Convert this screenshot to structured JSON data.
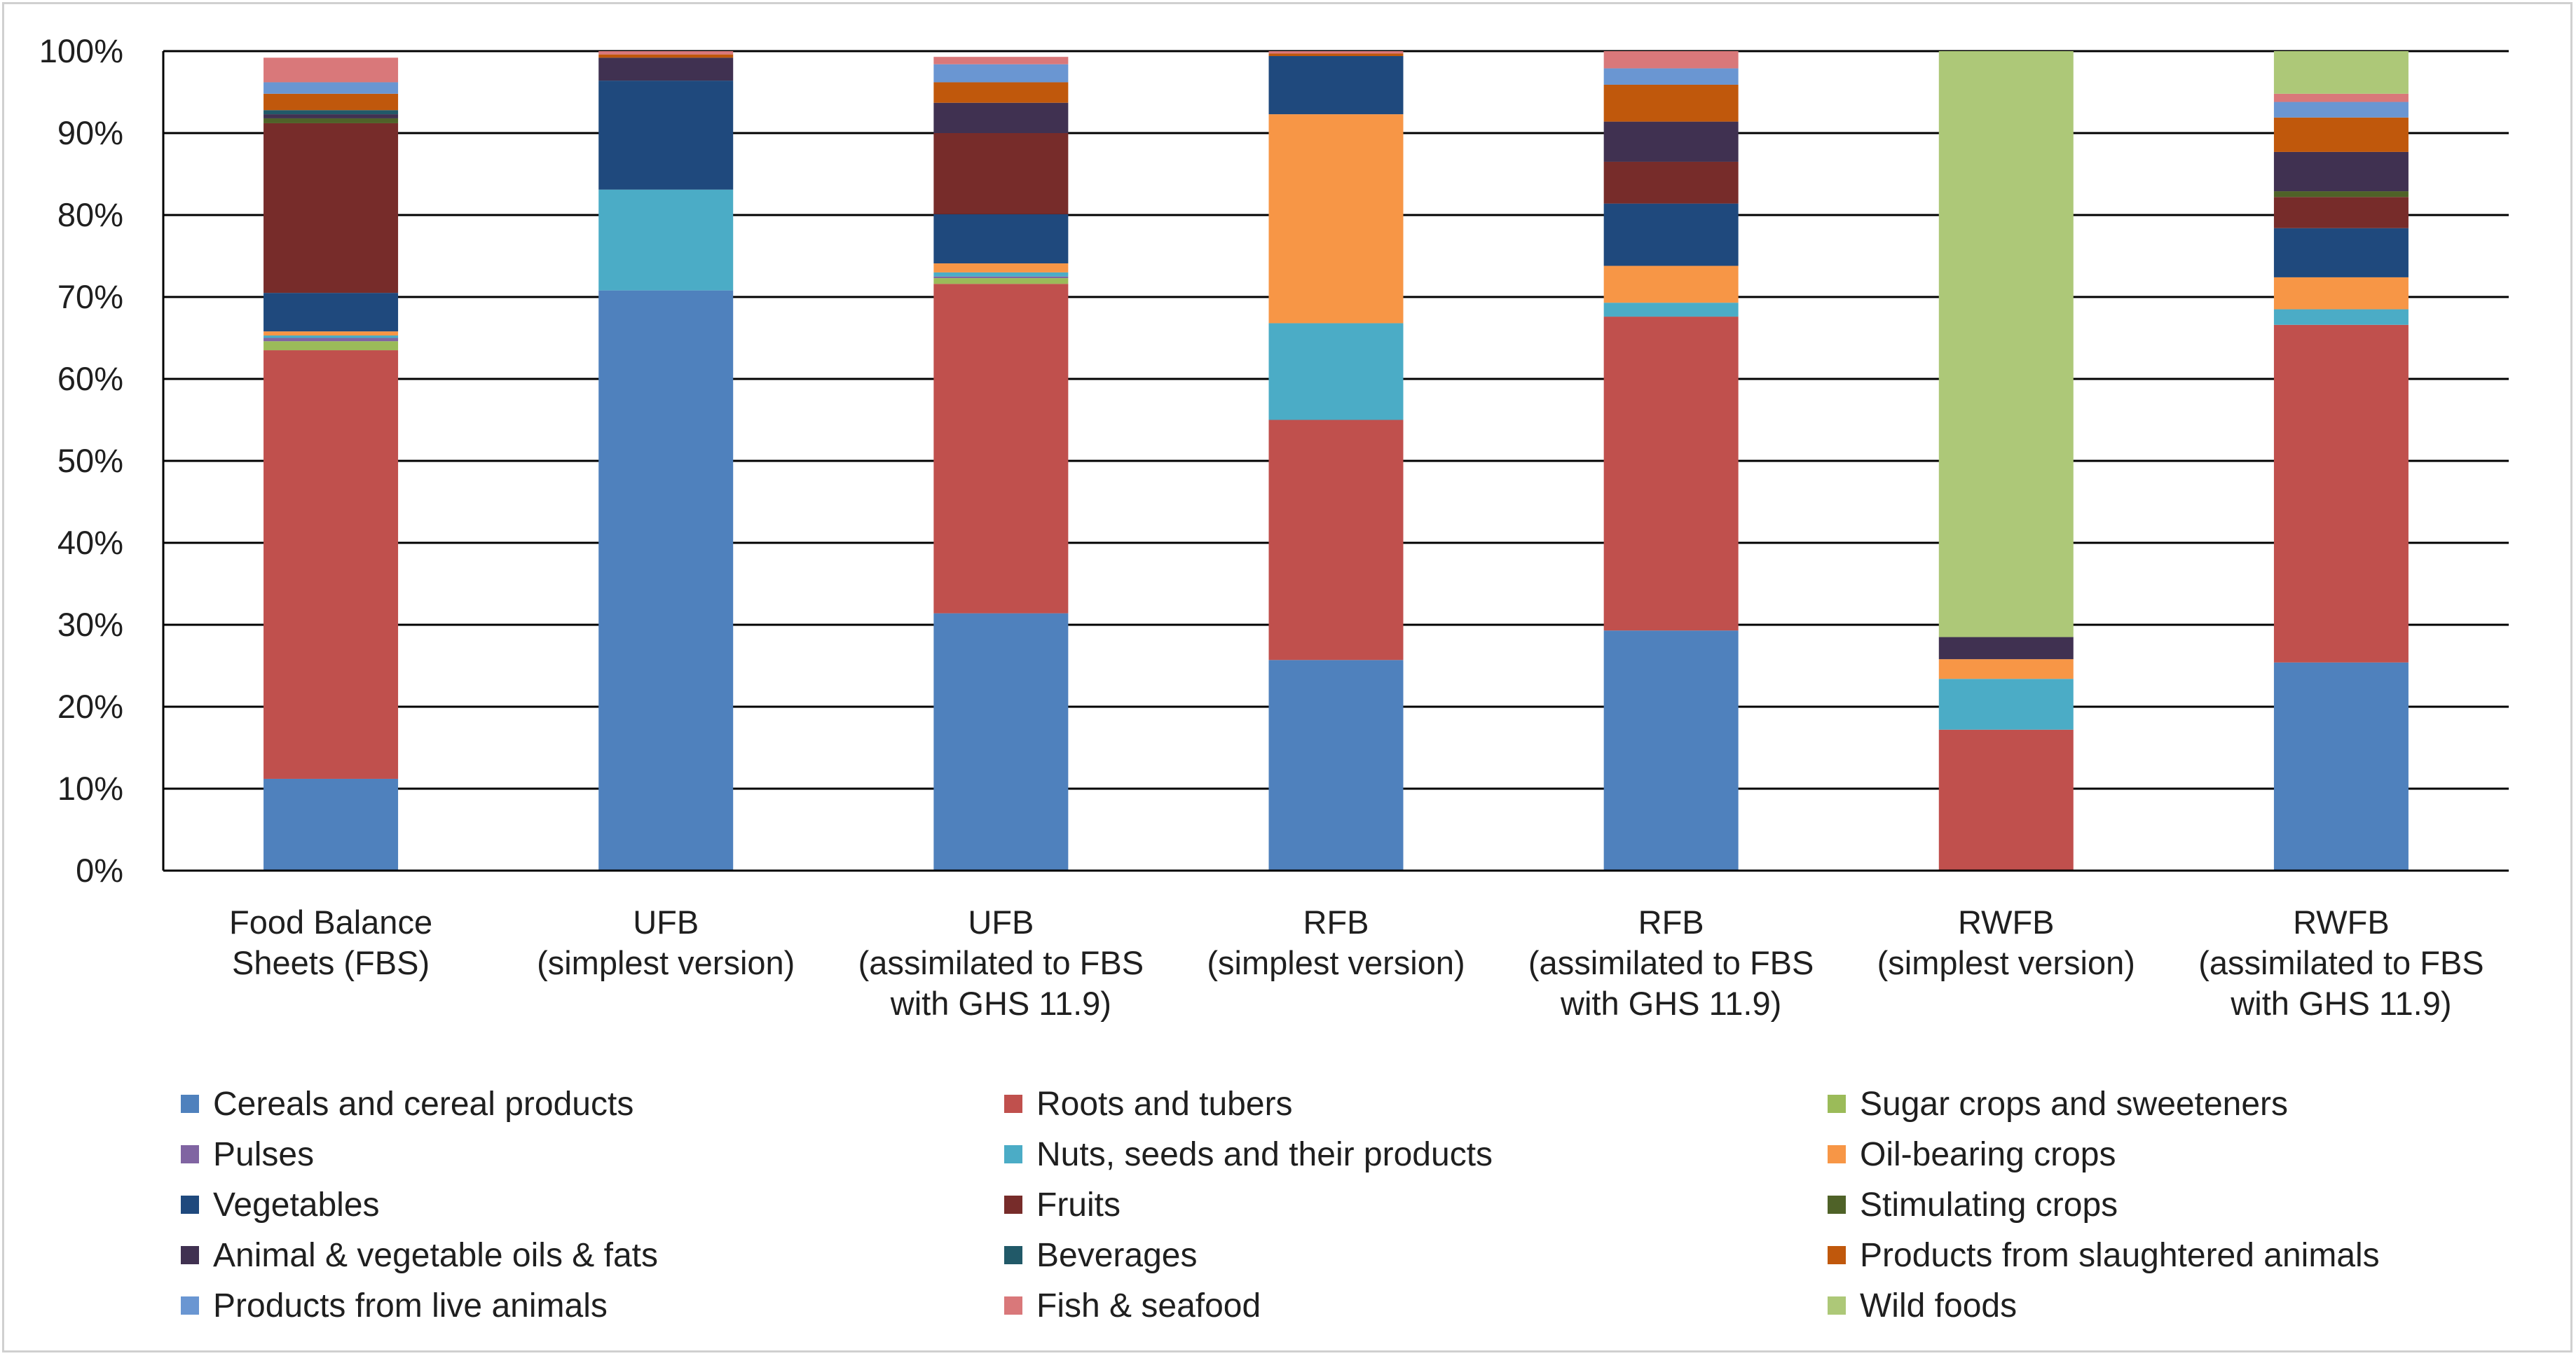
{
  "chart_data": {
    "type": "bar",
    "stacked": true,
    "ylim": [
      0,
      100
    ],
    "y_ticks": [
      0,
      10,
      20,
      30,
      40,
      50,
      60,
      70,
      80,
      90,
      100
    ],
    "y_tick_format": "{v}%",
    "categories": [
      [
        "Food Balance",
        "Sheets (FBS)"
      ],
      [
        "UFB",
        "(simplest version)"
      ],
      [
        "UFB",
        "(assimilated to FBS",
        "with GHS 11.9)"
      ],
      [
        "RFB",
        "(simplest version)"
      ],
      [
        "RFB",
        "(assimilated to FBS",
        "with GHS 11.9)"
      ],
      [
        "RWFB",
        "(simplest version)"
      ],
      [
        "RWFB",
        "(assimilated to FBS",
        "with GHS 11.9)"
      ]
    ],
    "series": [
      {
        "name": "Cereals and cereal products",
        "color": "#4F81BD",
        "values": [
          11.2,
          70.8,
          31.4,
          25.7,
          29.3,
          0,
          25.4
        ]
      },
      {
        "name": "Roots and tubers",
        "color": "#C0504D",
        "values": [
          52.3,
          0,
          40.2,
          29.3,
          38.3,
          17.2,
          41.2
        ]
      },
      {
        "name": "Sugar crops and sweeteners",
        "color": "#9BBB59",
        "values": [
          1.1,
          0,
          0.7,
          0,
          0,
          0,
          0
        ]
      },
      {
        "name": "Pulses",
        "color": "#8064A2",
        "values": [
          0.4,
          0,
          0.2,
          0,
          0,
          0,
          0
        ]
      },
      {
        "name": "Nuts, seeds and their products",
        "color": "#4BACC6",
        "values": [
          0.3,
          12.3,
          0.5,
          11.8,
          1.7,
          6.2,
          1.9
        ]
      },
      {
        "name": "Oil-bearing crops",
        "color": "#F79646",
        "values": [
          0.5,
          0,
          1.1,
          25.5,
          4.5,
          2.4,
          3.9
        ]
      },
      {
        "name": "Vegetables",
        "color": "#1F497D",
        "values": [
          4.7,
          13.3,
          6.0,
          7.1,
          7.6,
          0,
          6.0
        ]
      },
      {
        "name": "Fruits",
        "color": "#772C2A",
        "values": [
          20.7,
          0,
          9.9,
          0,
          5.1,
          0,
          3.8
        ]
      },
      {
        "name": "Stimulating crops",
        "color": "#4F6228",
        "values": [
          0.6,
          0,
          0,
          0,
          0,
          0,
          0.7
        ]
      },
      {
        "name": "Animal & vegetable oils & fats",
        "color": "#403151",
        "values": [
          0.5,
          2.8,
          3.7,
          0,
          4.9,
          2.7,
          4.8
        ]
      },
      {
        "name": "Beverages",
        "color": "#215968",
        "values": [
          0.5,
          0,
          0,
          0,
          0,
          0,
          0
        ]
      },
      {
        "name": "Products from slaughtered animals",
        "color": "#C0580C",
        "values": [
          2.0,
          0.4,
          2.5,
          0.3,
          4.5,
          0,
          4.2
        ]
      },
      {
        "name": "Products from live animals",
        "color": "#6A96D2",
        "values": [
          1.4,
          0,
          2.2,
          0,
          2.0,
          0,
          1.9
        ]
      },
      {
        "name": "Fish & seafood",
        "color": "#D9787A",
        "values": [
          3.0,
          0.4,
          0.9,
          0.3,
          2.1,
          0,
          1.0
        ]
      },
      {
        "name": "Wild foods",
        "color": "#ADC878",
        "values": [
          0,
          0,
          0,
          0,
          0,
          71.5,
          5.2
        ]
      }
    ],
    "legend_position": "bottom",
    "legend_columns": 3
  }
}
